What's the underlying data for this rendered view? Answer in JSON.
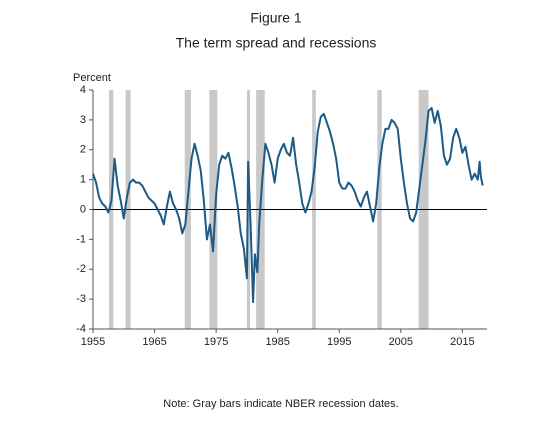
{
  "chart_data": {
    "type": "line",
    "title": "Figure 1",
    "subtitle": "The term spread and recessions",
    "y_label": "Percent",
    "note": "Note: Gray bars indicate NBER recession dates.",
    "xlim": [
      1955,
      2019
    ],
    "ylim": [
      -4,
      4
    ],
    "xticks": [
      1955,
      1965,
      1975,
      1985,
      1995,
      2005,
      2015
    ],
    "yticks": [
      -4,
      -3,
      -2,
      -1,
      0,
      1,
      2,
      3,
      4
    ],
    "recession_color": "#c8c8c8",
    "recessions": [
      [
        1957.6,
        1958.3
      ],
      [
        1960.3,
        1961.1
      ],
      [
        1969.9,
        1970.9
      ],
      [
        1973.9,
        1975.2
      ],
      [
        1980.0,
        1980.5
      ],
      [
        1981.5,
        1982.9
      ],
      [
        1990.6,
        1991.2
      ],
      [
        2001.2,
        2001.9
      ],
      [
        2007.9,
        2009.5
      ]
    ],
    "series": [
      {
        "color": "#1d5a85",
        "x": [
          1955.0,
          1955.5,
          1956.0,
          1956.5,
          1957.0,
          1957.5,
          1958.0,
          1958.5,
          1959.0,
          1959.5,
          1960.0,
          1960.5,
          1961.0,
          1961.5,
          1962.0,
          1962.5,
          1963.0,
          1963.5,
          1964.0,
          1964.5,
          1965.0,
          1965.5,
          1966.0,
          1966.5,
          1967.0,
          1967.5,
          1968.0,
          1968.5,
          1969.0,
          1969.5,
          1970.0,
          1970.5,
          1971.0,
          1971.5,
          1972.0,
          1972.5,
          1973.0,
          1973.5,
          1974.0,
          1974.5,
          1975.0,
          1975.5,
          1976.0,
          1976.5,
          1977.0,
          1977.5,
          1978.0,
          1978.5,
          1979.0,
          1979.5,
          1980.0,
          1980.2,
          1980.6,
          1981.0,
          1981.3,
          1981.7,
          1982.0,
          1982.5,
          1983.0,
          1983.5,
          1984.0,
          1984.5,
          1985.0,
          1985.5,
          1986.0,
          1986.5,
          1987.0,
          1987.5,
          1988.0,
          1988.5,
          1989.0,
          1989.5,
          1990.0,
          1990.5,
          1991.0,
          1991.5,
          1992.0,
          1992.5,
          1993.0,
          1993.5,
          1994.0,
          1994.5,
          1995.0,
          1995.5,
          1996.0,
          1996.5,
          1997.0,
          1997.5,
          1998.0,
          1998.5,
          1999.0,
          1999.5,
          2000.0,
          2000.5,
          2001.0,
          2001.5,
          2002.0,
          2002.5,
          2003.0,
          2003.5,
          2004.0,
          2004.5,
          2005.0,
          2005.5,
          2006.0,
          2006.5,
          2007.0,
          2007.5,
          2008.0,
          2008.5,
          2009.0,
          2009.5,
          2010.0,
          2010.5,
          2011.0,
          2011.5,
          2012.0,
          2012.5,
          2013.0,
          2013.5,
          2014.0,
          2014.5,
          2015.0,
          2015.5,
          2016.0,
          2016.5,
          2017.0,
          2017.5,
          2017.8,
          2018.0,
          2018.3
        ],
        "values": [
          1.2,
          0.9,
          0.4,
          0.2,
          0.1,
          -0.1,
          0.3,
          1.7,
          0.8,
          0.3,
          -0.3,
          0.4,
          0.9,
          1.0,
          0.9,
          0.9,
          0.8,
          0.6,
          0.4,
          0.3,
          0.2,
          0.0,
          -0.2,
          -0.5,
          0.1,
          0.6,
          0.2,
          0.0,
          -0.3,
          -0.8,
          -0.5,
          0.6,
          1.7,
          2.2,
          1.8,
          1.3,
          0.3,
          -1.0,
          -0.5,
          -1.4,
          0.5,
          1.5,
          1.8,
          1.7,
          1.9,
          1.4,
          0.8,
          0.1,
          -0.8,
          -1.3,
          -2.3,
          1.6,
          -0.5,
          -3.1,
          -1.5,
          -2.1,
          -0.5,
          1.0,
          2.2,
          1.9,
          1.5,
          0.9,
          1.7,
          2.0,
          2.2,
          1.9,
          1.8,
          2.4,
          1.5,
          0.9,
          0.2,
          -0.1,
          0.2,
          0.6,
          1.4,
          2.6,
          3.1,
          3.2,
          2.9,
          2.6,
          2.2,
          1.7,
          0.9,
          0.7,
          0.7,
          0.9,
          0.8,
          0.6,
          0.3,
          0.1,
          0.4,
          0.6,
          0.1,
          -0.4,
          0.2,
          1.4,
          2.2,
          2.7,
          2.7,
          3.0,
          2.9,
          2.7,
          1.7,
          0.9,
          0.2,
          -0.3,
          -0.4,
          -0.1,
          0.7,
          1.5,
          2.3,
          3.3,
          3.4,
          2.9,
          3.3,
          2.8,
          1.8,
          1.5,
          1.7,
          2.4,
          2.7,
          2.4,
          1.9,
          2.1,
          1.5,
          1.0,
          1.2,
          1.0,
          1.6,
          1.1,
          0.8
        ]
      }
    ]
  }
}
